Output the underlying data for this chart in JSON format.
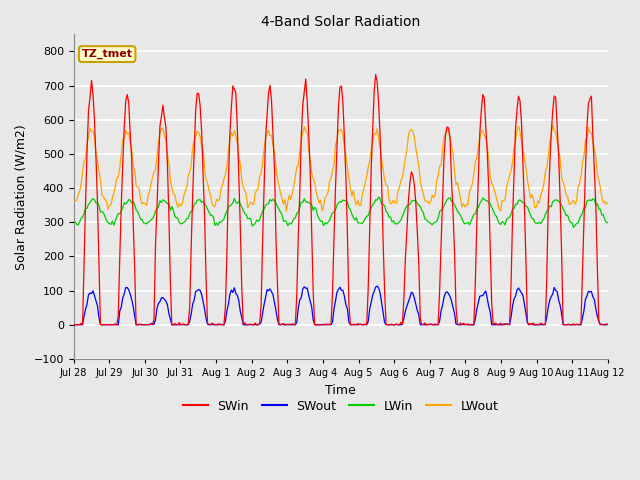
{
  "title": "4-Band Solar Radiation",
  "xlabel": "Time",
  "ylabel": "Solar Radiation (W/m2)",
  "ylim": [
    -100,
    850
  ],
  "yticks": [
    -100,
    0,
    100,
    200,
    300,
    400,
    500,
    600,
    700,
    800
  ],
  "annotation_text": "TZ_tmet",
  "annotation_color": "#8B0000",
  "annotation_bg": "#FFFFCC",
  "annotation_border": "#C8A000",
  "fig_bg": "#E8E8E8",
  "axes_bg": "#E8E8E8",
  "grid_color": "#FFFFFF",
  "line_colors": {
    "SWin": "#FF0000",
    "SWout": "#0000FF",
    "LWin": "#00CC00",
    "LWout": "#FFA500"
  },
  "n_days": 15,
  "hours_per_day": 24,
  "swin_peaks": [
    710,
    670,
    655,
    690,
    695,
    700,
    700,
    700,
    715,
    440,
    570,
    660,
    670,
    670,
    660
  ],
  "swout_peaks": [
    100,
    105,
    80,
    105,
    105,
    110,
    110,
    110,
    110,
    85,
    95,
    100,
    105,
    105,
    100
  ],
  "day_names": [
    "Jul 28",
    "Jul 29",
    "Jul 30",
    "Jul 31",
    "Aug 1",
    "Aug 2",
    "Aug 3",
    "Aug 4",
    "Aug 5",
    "Aug 6",
    "Aug 7",
    "Aug 8",
    "Aug 9",
    "Aug 10",
    "Aug 11",
    "Aug 12"
  ],
  "figsize": [
    6.4,
    4.8
  ],
  "dpi": 100
}
